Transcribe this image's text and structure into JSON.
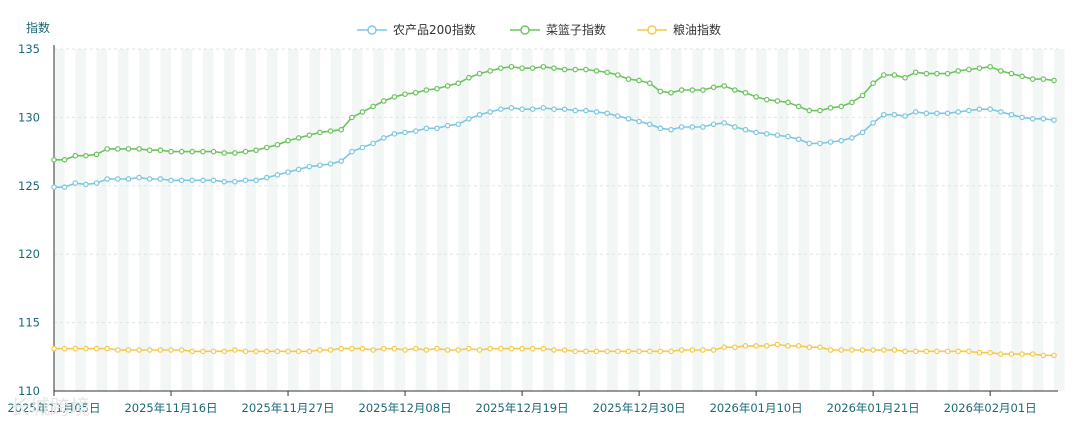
{
  "chart_data": {
    "type": "line",
    "ylabel": "指数",
    "ylim": [
      110,
      135
    ],
    "yticks": [
      110,
      115,
      120,
      125,
      130,
      135
    ],
    "legend_position": "top-center",
    "xtick_labels": [
      "2025年11月05日",
      "2025年11月16日",
      "2025年11月27日",
      "2025年12月08日",
      "2025年12月19日",
      "2025年12月30日",
      "2026年01月10日",
      "2026年01月21日",
      "2026年02月01日"
    ],
    "xtick_step": 11,
    "series": [
      {
        "name": "农产品200指数",
        "color": "#7ec7e0",
        "values": [
          124.9,
          124.9,
          125.2,
          125.1,
          125.2,
          125.5,
          125.5,
          125.5,
          125.6,
          125.5,
          125.5,
          125.4,
          125.4,
          125.4,
          125.4,
          125.4,
          125.3,
          125.3,
          125.4,
          125.4,
          125.6,
          125.8,
          126.0,
          126.2,
          126.4,
          126.5,
          126.6,
          126.8,
          127.5,
          127.8,
          128.1,
          128.5,
          128.8,
          128.9,
          129.0,
          129.2,
          129.2,
          129.4,
          129.5,
          129.9,
          130.2,
          130.4,
          130.6,
          130.7,
          130.6,
          130.6,
          130.7,
          130.6,
          130.6,
          130.5,
          130.5,
          130.4,
          130.3,
          130.1,
          129.9,
          129.7,
          129.5,
          129.2,
          129.1,
          129.3,
          129.3,
          129.3,
          129.5,
          129.6,
          129.3,
          129.1,
          128.9,
          128.8,
          128.7,
          128.6,
          128.4,
          128.1,
          128.1,
          128.2,
          128.3,
          128.5,
          128.9,
          129.6,
          130.2,
          130.2,
          130.1,
          130.4,
          130.3,
          130.3,
          130.3,
          130.4,
          130.5,
          130.6,
          130.6,
          130.4,
          130.2,
          130.0,
          129.9,
          129.9,
          129.8
        ]
      },
      {
        "name": "菜篮子指数",
        "color": "#6cc35f",
        "values": [
          126.9,
          126.9,
          127.2,
          127.2,
          127.3,
          127.7,
          127.7,
          127.7,
          127.7,
          127.6,
          127.6,
          127.5,
          127.5,
          127.5,
          127.5,
          127.5,
          127.4,
          127.4,
          127.5,
          127.6,
          127.8,
          128.0,
          128.3,
          128.5,
          128.7,
          128.9,
          129.0,
          129.1,
          130.0,
          130.4,
          130.8,
          131.2,
          131.5,
          131.7,
          131.8,
          132.0,
          132.1,
          132.3,
          132.5,
          132.9,
          133.2,
          133.4,
          133.6,
          133.7,
          133.6,
          133.6,
          133.7,
          133.6,
          133.5,
          133.5,
          133.5,
          133.4,
          133.3,
          133.1,
          132.8,
          132.7,
          132.5,
          131.9,
          131.8,
          132.0,
          132.0,
          132.0,
          132.2,
          132.3,
          132.0,
          131.8,
          131.5,
          131.3,
          131.2,
          131.1,
          130.8,
          130.5,
          130.5,
          130.7,
          130.8,
          131.1,
          131.6,
          132.5,
          133.1,
          133.1,
          132.9,
          133.3,
          133.2,
          133.2,
          133.2,
          133.4,
          133.5,
          133.6,
          133.7,
          133.4,
          133.2,
          133.0,
          132.8,
          132.8,
          132.7
        ]
      },
      {
        "name": "粮油指数",
        "color": "#f5c94d",
        "values": [
          113.1,
          113.1,
          113.1,
          113.1,
          113.1,
          113.1,
          113.0,
          113.0,
          113.0,
          113.0,
          113.0,
          113.0,
          113.0,
          112.9,
          112.9,
          112.9,
          112.9,
          113.0,
          112.9,
          112.9,
          112.9,
          112.9,
          112.9,
          112.9,
          112.9,
          113.0,
          113.0,
          113.1,
          113.1,
          113.1,
          113.0,
          113.1,
          113.1,
          113.0,
          113.1,
          113.0,
          113.1,
          113.0,
          113.0,
          113.1,
          113.0,
          113.1,
          113.1,
          113.1,
          113.1,
          113.1,
          113.1,
          113.0,
          113.0,
          112.9,
          112.9,
          112.9,
          112.9,
          112.9,
          112.9,
          112.9,
          112.9,
          112.9,
          112.9,
          113.0,
          113.0,
          113.0,
          113.0,
          113.2,
          113.2,
          113.3,
          113.3,
          113.3,
          113.4,
          113.3,
          113.3,
          113.2,
          113.2,
          113.0,
          113.0,
          113.0,
          113.0,
          113.0,
          113.0,
          113.0,
          112.9,
          112.9,
          112.9,
          112.9,
          112.9,
          112.9,
          112.9,
          112.8,
          112.8,
          112.7,
          112.7,
          112.7,
          112.7,
          112.6,
          112.6
        ]
      }
    ]
  },
  "watermark": "长城跨境"
}
